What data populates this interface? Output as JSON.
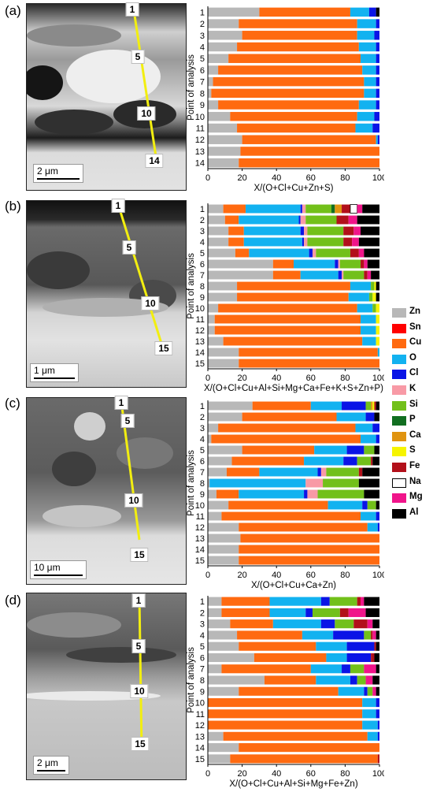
{
  "colors": {
    "Zn": "#b8b8b8",
    "Sn": "#ff0000",
    "Cu": "#ff6a10",
    "O": "#12b2f0",
    "Cl": "#0a14e6",
    "K": "#f89aa6",
    "Si": "#72c01a",
    "P": "#116e20",
    "Ca": "#e09410",
    "S": "#f6f400",
    "Fe": "#b2101a",
    "Na": "#ffffff",
    "Mg": "#f0148a",
    "Al": "#000000"
  },
  "legend": [
    "Zn",
    "Sn",
    "Cu",
    "O",
    "Cl",
    "K",
    "Si",
    "P",
    "Ca",
    "S",
    "Fe",
    "Na",
    "Mg",
    "Al"
  ],
  "chart_data": [
    {
      "panel": "(a)",
      "type": "bar",
      "orientation": "horizontal-stacked",
      "categories": [
        "1",
        "2",
        "3",
        "4",
        "5",
        "6",
        "7",
        "8",
        "9",
        "10",
        "11",
        "12",
        "13",
        "14"
      ],
      "xlabel": "X/(O+Cl+Cu+Zn+S)",
      "ylabel": "Point of analysis",
      "xlim": [
        0,
        100
      ],
      "xticks": [
        "0",
        "20",
        "40",
        "60",
        "80",
        "100"
      ],
      "rows": [
        {
          "Zn": 30,
          "Cu": 53,
          "O": 11,
          "Cl": 4,
          "Al": 2
        },
        {
          "Zn": 18,
          "Cu": 69,
          "O": 11,
          "Cl": 2
        },
        {
          "Zn": 20,
          "Cu": 67,
          "O": 10,
          "Cl": 3
        },
        {
          "Zn": 17,
          "Cu": 71,
          "O": 10,
          "Cl": 2
        },
        {
          "Zn": 12,
          "Cu": 77,
          "O": 9,
          "Cl": 2
        },
        {
          "Zn": 6,
          "Cu": 84,
          "O": 8,
          "Cl": 2
        },
        {
          "Zn": 3,
          "Cu": 88,
          "O": 7,
          "Cl": 2
        },
        {
          "Zn": 2,
          "Cu": 89,
          "O": 7,
          "Cl": 2
        },
        {
          "Zn": 6,
          "Cu": 82,
          "O": 10,
          "Cl": 2
        },
        {
          "Zn": 13,
          "Cu": 74,
          "O": 10,
          "Cl": 3
        },
        {
          "Zn": 17,
          "Cu": 69,
          "O": 10,
          "Cl": 4
        },
        {
          "Zn": 20,
          "Cu": 78,
          "O": 1,
          "Cl": 1
        },
        {
          "Zn": 19,
          "Cu": 81
        },
        {
          "Zn": 18,
          "Cu": 82
        }
      ]
    },
    {
      "panel": "(b)",
      "type": "bar",
      "orientation": "horizontal-stacked",
      "categories": [
        "1",
        "2",
        "3",
        "4",
        "5",
        "6",
        "7",
        "8",
        "9",
        "10",
        "11",
        "12",
        "13",
        "14",
        "15"
      ],
      "xlabel": "X/(O+Cl+Cu+Al+Si+Mg+Ca+Fe+K+S+Zn+P)",
      "ylabel": "Point of analysis",
      "xlim": [
        0,
        100
      ],
      "xticks": [
        "0",
        "20",
        "40",
        "60",
        "80",
        "100"
      ],
      "rows": [
        {
          "Zn": 9,
          "Cu": 13,
          "O": 32,
          "Cl": 1,
          "P": 2,
          "Si": 15,
          "Ca": 4,
          "Fe": 5,
          "K": 2,
          "Mg": 3,
          "Al": 10,
          "Na": 4
        },
        {
          "Zn": 10,
          "Cu": 8,
          "O": 35,
          "Cl": 1,
          "Si": 18,
          "Fe": 7,
          "K": 3,
          "Mg": 5,
          "Al": 13
        },
        {
          "Zn": 12,
          "Cu": 9,
          "O": 33,
          "Cl": 2,
          "Si": 21,
          "Fe": 6,
          "K": 2,
          "Mg": 4,
          "Al": 11
        },
        {
          "Zn": 12,
          "Cu": 9,
          "O": 34,
          "Cl": 1,
          "Si": 21,
          "Fe": 5,
          "K": 2,
          "Mg": 4,
          "Al": 12
        },
        {
          "Zn": 16,
          "Cu": 8,
          "O": 35,
          "Cl": 2,
          "Si": 20,
          "Fe": 5,
          "K": 2,
          "Mg": 3,
          "Al": 9
        },
        {
          "Zn": 38,
          "Cu": 12,
          "O": 24,
          "Cl": 2,
          "Si": 12,
          "Fe": 2,
          "K": 1,
          "Mg": 2,
          "Al": 7
        },
        {
          "Zn": 38,
          "Cu": 16,
          "O": 22,
          "Cl": 2,
          "Si": 12,
          "Fe": 2,
          "K": 1,
          "Mg": 2,
          "Al": 5
        },
        {
          "Zn": 17,
          "Cu": 66,
          "O": 12,
          "Si": 2,
          "S": 1,
          "Al": 2
        },
        {
          "Zn": 17,
          "Cu": 65,
          "O": 12,
          "Si": 2,
          "S": 2,
          "Al": 2
        },
        {
          "Zn": 6,
          "Cu": 81,
          "O": 9,
          "Si": 2,
          "S": 2
        },
        {
          "Zn": 4,
          "Cu": 85,
          "O": 9,
          "S": 2
        },
        {
          "Zn": 4,
          "Cu": 85,
          "O": 9,
          "S": 2
        },
        {
          "Zn": 9,
          "Cu": 81,
          "O": 8,
          "S": 2
        },
        {
          "Zn": 18,
          "Cu": 81,
          "O": 1
        },
        {
          "Zn": 18,
          "Cu": 82
        }
      ]
    },
    {
      "panel": "(c)",
      "type": "bar",
      "orientation": "horizontal-stacked",
      "categories": [
        "1",
        "2",
        "3",
        "4",
        "5",
        "6",
        "7",
        "8",
        "9",
        "10",
        "11",
        "12",
        "13",
        "14",
        "15"
      ],
      "xlabel": "X/(O+Cl+Cu+Ca+Zn)",
      "ylabel": "Point of analysis",
      "xlim": [
        0,
        100
      ],
      "xticks": [
        "0",
        "20",
        "40",
        "60",
        "80",
        "100"
      ],
      "rows": [
        {
          "Zn": 26,
          "Cu": 34,
          "O": 18,
          "Cl": 14,
          "Si": 3,
          "S": 1,
          "Ca": 1,
          "Fe": 1,
          "Al": 2
        },
        {
          "Zn": 20,
          "Cu": 55,
          "O": 17,
          "Cl": 5,
          "Al": 3
        },
        {
          "Zn": 6,
          "Cu": 80,
          "O": 10,
          "Cl": 4
        },
        {
          "Zn": 2,
          "Cu": 87,
          "O": 9,
          "Cl": 2
        },
        {
          "Zn": 20,
          "Cu": 42,
          "O": 19,
          "Cl": 10,
          "Si": 6,
          "Al": 3
        },
        {
          "Zn": 14,
          "Cu": 42,
          "O": 23,
          "Cl": 8,
          "Si": 8,
          "Fe": 1,
          "Al": 4
        },
        {
          "Zn": 11,
          "Cu": 19,
          "O": 34,
          "Cl": 2,
          "K": 3,
          "Si": 19,
          "Fe": 2,
          "Al": 10
        },
        {
          "Zn": 1,
          "O": 56,
          "K": 10,
          "Si": 21,
          "Al": 12
        },
        {
          "Zn": 5,
          "Cu": 13,
          "O": 38,
          "Cl": 2,
          "K": 6,
          "Si": 27,
          "Al": 9
        },
        {
          "Zn": 12,
          "Cu": 58,
          "O": 20,
          "Cl": 3,
          "Si": 5,
          "Al": 2
        },
        {
          "Zn": 8,
          "Cu": 81,
          "O": 9,
          "Cl": 2
        },
        {
          "Zn": 18,
          "Cu": 75,
          "O": 6,
          "Cl": 1
        },
        {
          "Zn": 19,
          "Cu": 81
        },
        {
          "Zn": 18,
          "Cu": 82
        },
        {
          "Zn": 18,
          "Cu": 82
        }
      ]
    },
    {
      "panel": "(d)",
      "type": "bar",
      "orientation": "horizontal-stacked",
      "categories": [
        "1",
        "2",
        "3",
        "4",
        "5",
        "6",
        "7",
        "8",
        "9",
        "10",
        "11",
        "12",
        "13",
        "14",
        "15"
      ],
      "xlabel": "X/(O+Cl+Cu+Al+Si+Mg+Fe+Zn)",
      "ylabel": "Point of analysis",
      "xlim": [
        0,
        100
      ],
      "xticks": [
        "0",
        "20",
        "40",
        "60",
        "80",
        "100"
      ],
      "rows": [
        {
          "Zn": 8,
          "Cu": 28,
          "O": 30,
          "Cl": 5,
          "Si": 16,
          "Fe": 2,
          "Mg": 2,
          "Al": 9
        },
        {
          "Zn": 8,
          "Cu": 28,
          "O": 21,
          "Cl": 4,
          "Si": 16,
          "Fe": 5,
          "Mg": 10,
          "Al": 8
        },
        {
          "Zn": 13,
          "Cu": 25,
          "O": 28,
          "Cl": 8,
          "Si": 11,
          "Fe": 8,
          "Mg": 3,
          "Al": 4
        },
        {
          "Zn": 17,
          "Cu": 38,
          "O": 18,
          "Cl": 18,
          "Si": 4,
          "Fe": 1,
          "Mg": 2,
          "Al": 2
        },
        {
          "Zn": 18,
          "Cu": 45,
          "O": 18,
          "Cl": 16,
          "Fe": 1,
          "Al": 2
        },
        {
          "Zn": 27,
          "Cu": 42,
          "O": 12,
          "Cl": 14,
          "Fe": 2,
          "Al": 3
        },
        {
          "Zn": 8,
          "Cu": 52,
          "O": 18,
          "Cl": 5,
          "Si": 8,
          "Mg": 7,
          "Al": 2
        },
        {
          "Zn": 33,
          "Cu": 30,
          "O": 20,
          "Cl": 4,
          "Si": 5,
          "Mg": 4,
          "Al": 4
        },
        {
          "Zn": 18,
          "Cu": 58,
          "O": 15,
          "Cl": 2,
          "Si": 3,
          "Mg": 2,
          "Al": 2
        },
        {
          "Cu": 90,
          "O": 8,
          "Cl": 2
        },
        {
          "Cu": 90,
          "O": 8,
          "Cl": 2
        },
        {
          "Cu": 90,
          "O": 9,
          "Cl": 1
        },
        {
          "Zn": 9,
          "Cu": 84,
          "O": 6,
          "Cl": 1
        },
        {
          "Zn": 18,
          "Cu": 82
        },
        {
          "Zn": 13,
          "Cu": 86,
          "Fe": 1
        }
      ]
    }
  ],
  "micrographs": [
    {
      "panel_label": "(a)",
      "scale_label": "2 μm",
      "points": [
        "1",
        "5",
        "10",
        "14"
      ]
    },
    {
      "panel_label": "(b)",
      "scale_label": "1 μm",
      "points": [
        "1",
        "5",
        "10",
        "15"
      ]
    },
    {
      "panel_label": "(c)",
      "scale_label": "10 μm",
      "points": [
        "1",
        "5",
        "10",
        "15"
      ]
    },
    {
      "panel_label": "(d)",
      "scale_label": "2 μm",
      "points": [
        "1",
        "5",
        "10",
        "15"
      ]
    }
  ]
}
